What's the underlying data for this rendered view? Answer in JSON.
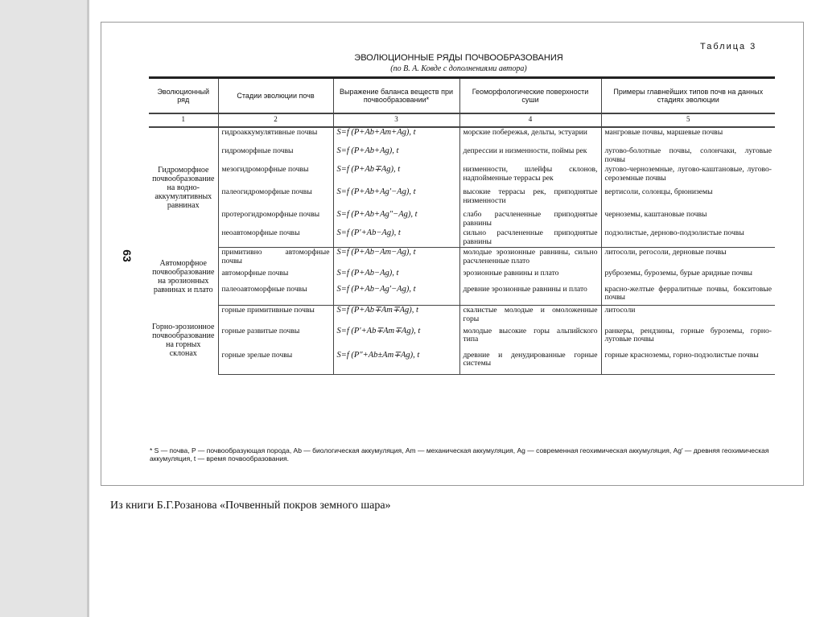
{
  "table_label": "Таблица 3",
  "title": "ЭВОЛЮЦИОННЫЕ РЯДЫ ПОЧВООБРАЗОВАНИЯ",
  "subtitle": "(по В. А. Ковде с дополнениями автора)",
  "page_number": "63",
  "headers": [
    "Эволюционный ряд",
    "Стадии эволюции почв",
    "Выражение баланса веществ при почвообразовании*",
    "Геоморфологические поверхности суши",
    "Примеры главнейших типов почв на данных стадиях эволюции"
  ],
  "column_numbers": [
    "1",
    "2",
    "3",
    "4",
    "5"
  ],
  "groups": [
    {
      "name": "Гидроморфное почвообразование на водно-аккумулятивных равнинах",
      "rows": [
        {
          "stage": "гидроаккумулятивные почвы",
          "formula": "S=f (P+Ab+Am+Ag), t",
          "surface": "морские побережья, дельты, эстуарии",
          "soils": "мангровые почвы, маршевые почвы"
        },
        {
          "stage": "гидроморфные почвы",
          "formula": "S=f (P+Ab+Ag), t",
          "surface": "депрессии и низменности, поймы рек",
          "soils": "лугово-болотные почвы, солончаки, луговые почвы"
        },
        {
          "stage": "мезогидроморфные почвы",
          "formula": "S=f (P+Ab∓Ag), t",
          "surface": "низменности, шлейфы склонов, надпойменные террасы рек",
          "soils": "лугово-черноземные, лугово-каштановые, лугово-сероземные почвы"
        },
        {
          "stage": "палеогидроморфные почвы",
          "formula": "S=f (P+Ab+Ag′−Ag), t",
          "surface": "высокие террасы рек, приподнятые низменности",
          "soils": "вертисоли, солонцы, брюниземы"
        },
        {
          "stage": "протерогидроморфные почвы",
          "formula": "S=f (P+Ab+Ag″−Ag), t",
          "surface": "слабо расчлененные приподнятые равнины",
          "soils": "черноземы, каштановые почвы"
        },
        {
          "stage": "неоавтоморфные почвы",
          "formula": "S=f (P′+Ab−Ag), t",
          "surface": "сильно расчлененные приподнятые равнины",
          "soils": "подзолистые, дерново-подзолистые почвы"
        }
      ]
    },
    {
      "name": "Автоморфное почвообразование на эрозионных равнинах и плато",
      "rows": [
        {
          "stage": "примитивно автоморфные почвы",
          "formula": "S=f (P+Ab−Am−Ag), t",
          "surface": "молодые эрозионные равнины, сильно расчлененные плато",
          "soils": "литосоли, регосоли, дерновые почвы"
        },
        {
          "stage": "автоморфные почвы",
          "formula": "S=f (P+Ab−Ag), t",
          "surface": "эрозионные равнины и плато",
          "soils": "руброземы, буроземы, бурые аридные почвы"
        },
        {
          "stage": "палеоавтоморфные почвы",
          "formula": "S=f (P+Ab−Ag′−Ag), t",
          "surface": "древние эрозионные равнины и плато",
          "soils": "красно-желтые ферралитные почвы, бокситовые почвы"
        }
      ]
    },
    {
      "name": "Горно-эрозионное почвообразование на горных склонах",
      "rows": [
        {
          "stage": "горные примитивные почвы",
          "formula": "S=f (P+Ab∓Am∓Ag), t",
          "surface": "скалистые молодые и омоложенные горы",
          "soils": "литосоли"
        },
        {
          "stage": "горные развитые почвы",
          "formula": "S=f (P′+Ab∓Am∓Ag), t",
          "surface": "молодые высокие горы альпийского типа",
          "soils": "ранкеры, рендзины, горные буроземы, горно-луговые почвы"
        },
        {
          "stage": "горные зрелые почвы",
          "formula": "S=f (P″+Ab±Am∓Ag), t",
          "surface": "древние и денудированные горные системы",
          "soils": "горные красноземы, горно-подзолистые почвы"
        }
      ]
    }
  ],
  "footnote": "* S — почва, P — почвообразующая порода, Ab — биологическая аккумуляция, Am — механическая аккумуляция, Ag — современная геохимическая аккумуляция, Ag′ — древняя геохимическая аккумуляция, t — время почвообразования.",
  "caption": "Из книги Б.Г.Розанова «Почвенный покров земного шара»"
}
